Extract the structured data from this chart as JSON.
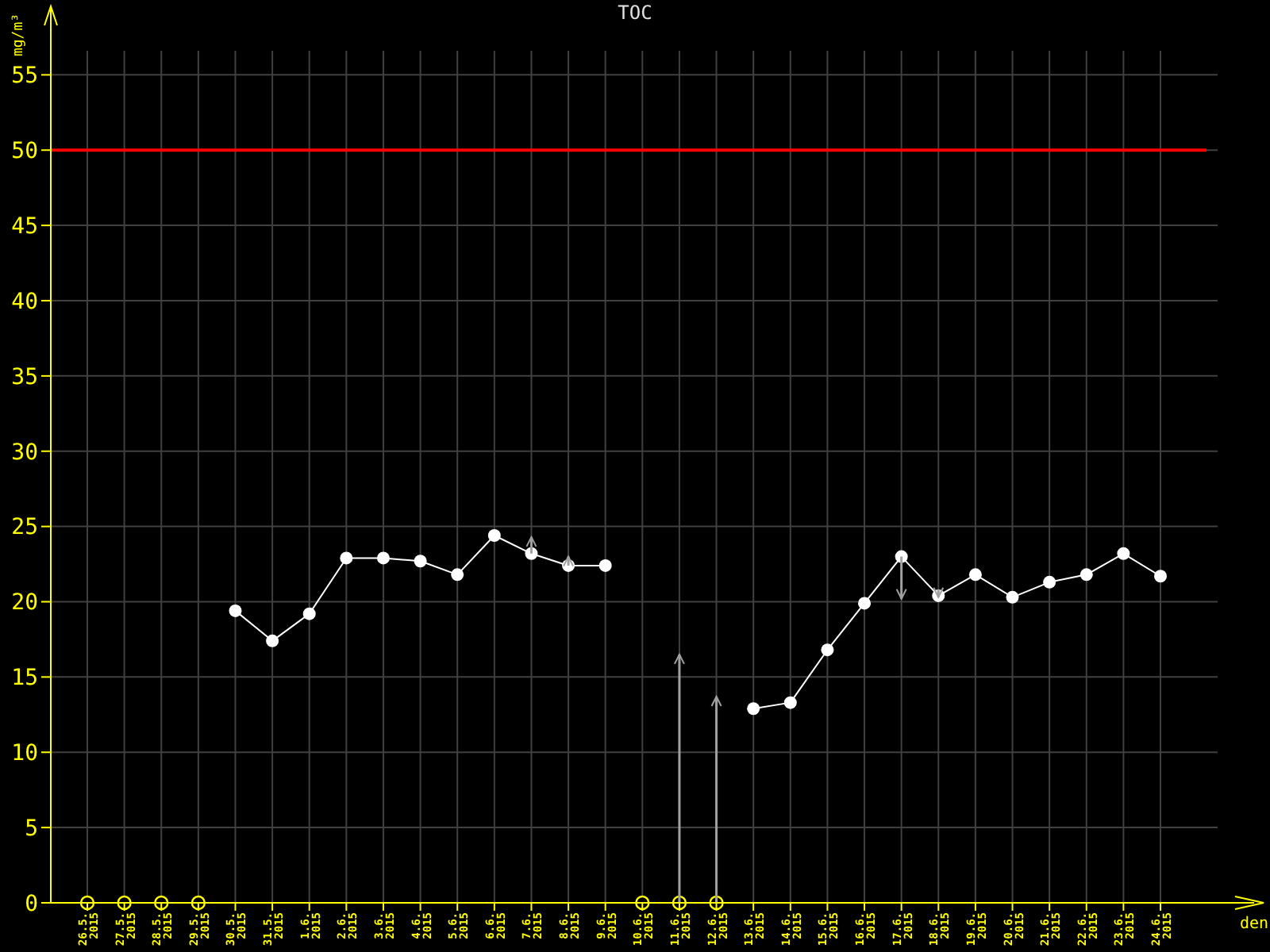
{
  "chart_data": {
    "type": "line",
    "title": "TOC",
    "xlabel": "den",
    "ylabel": "mg/m³",
    "categories": [
      "26.5. 2015",
      "27.5. 2015",
      "28.5. 2015",
      "29.5. 2015",
      "30.5. 2015",
      "31.5. 2015",
      "1.6. 2015",
      "2.6. 2015",
      "3.6. 2015",
      "4.6. 2015",
      "5.6. 2015",
      "6.6. 2015",
      "7.6. 2015",
      "8.6. 2015",
      "9.6. 2015",
      "10.6. 2015",
      "11.6. 2015",
      "12.6. 2015",
      "13.6. 2015",
      "14.6. 2015",
      "15.6. 2015",
      "16.6. 2015",
      "17.6. 2015",
      "18.6. 2015",
      "19.6. 2015",
      "20.6. 2015",
      "21.6. 2015",
      "22.6. 2015",
      "23.6. 2015",
      "24.6. 2015"
    ],
    "series": [
      {
        "color": "#ffffff",
        "marker": "circle",
        "values": [
          null,
          null,
          null,
          null,
          19.4,
          17.4,
          19.2,
          22.9,
          22.9,
          22.7,
          21.8,
          24.4,
          23.2,
          22.4,
          22.4,
          null,
          null,
          null,
          12.9,
          13.3,
          16.8,
          19.9,
          23.0,
          20.4,
          21.8,
          20.3,
          21.3,
          21.8,
          23.2,
          21.7
        ]
      },
      {
        "type": "scatter",
        "color": "#ffff00",
        "marker": "circle",
        "values": [
          0,
          0,
          0,
          0,
          null,
          null,
          null,
          null,
          null,
          null,
          null,
          null,
          null,
          null,
          null,
          0,
          0,
          0,
          null,
          null,
          null,
          null,
          null,
          null,
          null,
          null,
          null,
          null,
          null,
          null
        ]
      },
      {
        "type": "bar",
        "color": "#a0a0a0",
        "base": [
          null,
          null,
          null,
          null,
          null,
          null,
          null,
          null,
          null,
          null,
          null,
          null,
          23.2,
          22.4,
          null,
          null,
          0,
          0,
          null,
          null,
          null,
          null,
          23.0,
          20.8,
          null,
          null,
          null,
          null,
          null,
          null
        ],
        "values": [
          null,
          null,
          null,
          null,
          null,
          null,
          null,
          null,
          null,
          null,
          null,
          null,
          1.1,
          0.6,
          null,
          null,
          16.5,
          13.7,
          null,
          null,
          null,
          null,
          -2.8,
          -0.5,
          null,
          null,
          null,
          null,
          null,
          null
        ]
      }
    ],
    "ylim": [
      0,
      56.6
    ],
    "yticks": [
      0,
      5,
      10,
      15,
      20,
      25,
      30,
      35,
      40,
      45,
      50,
      55
    ],
    "grid": true,
    "ref_lines": [
      {
        "axis": "y",
        "value": 50,
        "color": "#ff0000"
      }
    ]
  }
}
